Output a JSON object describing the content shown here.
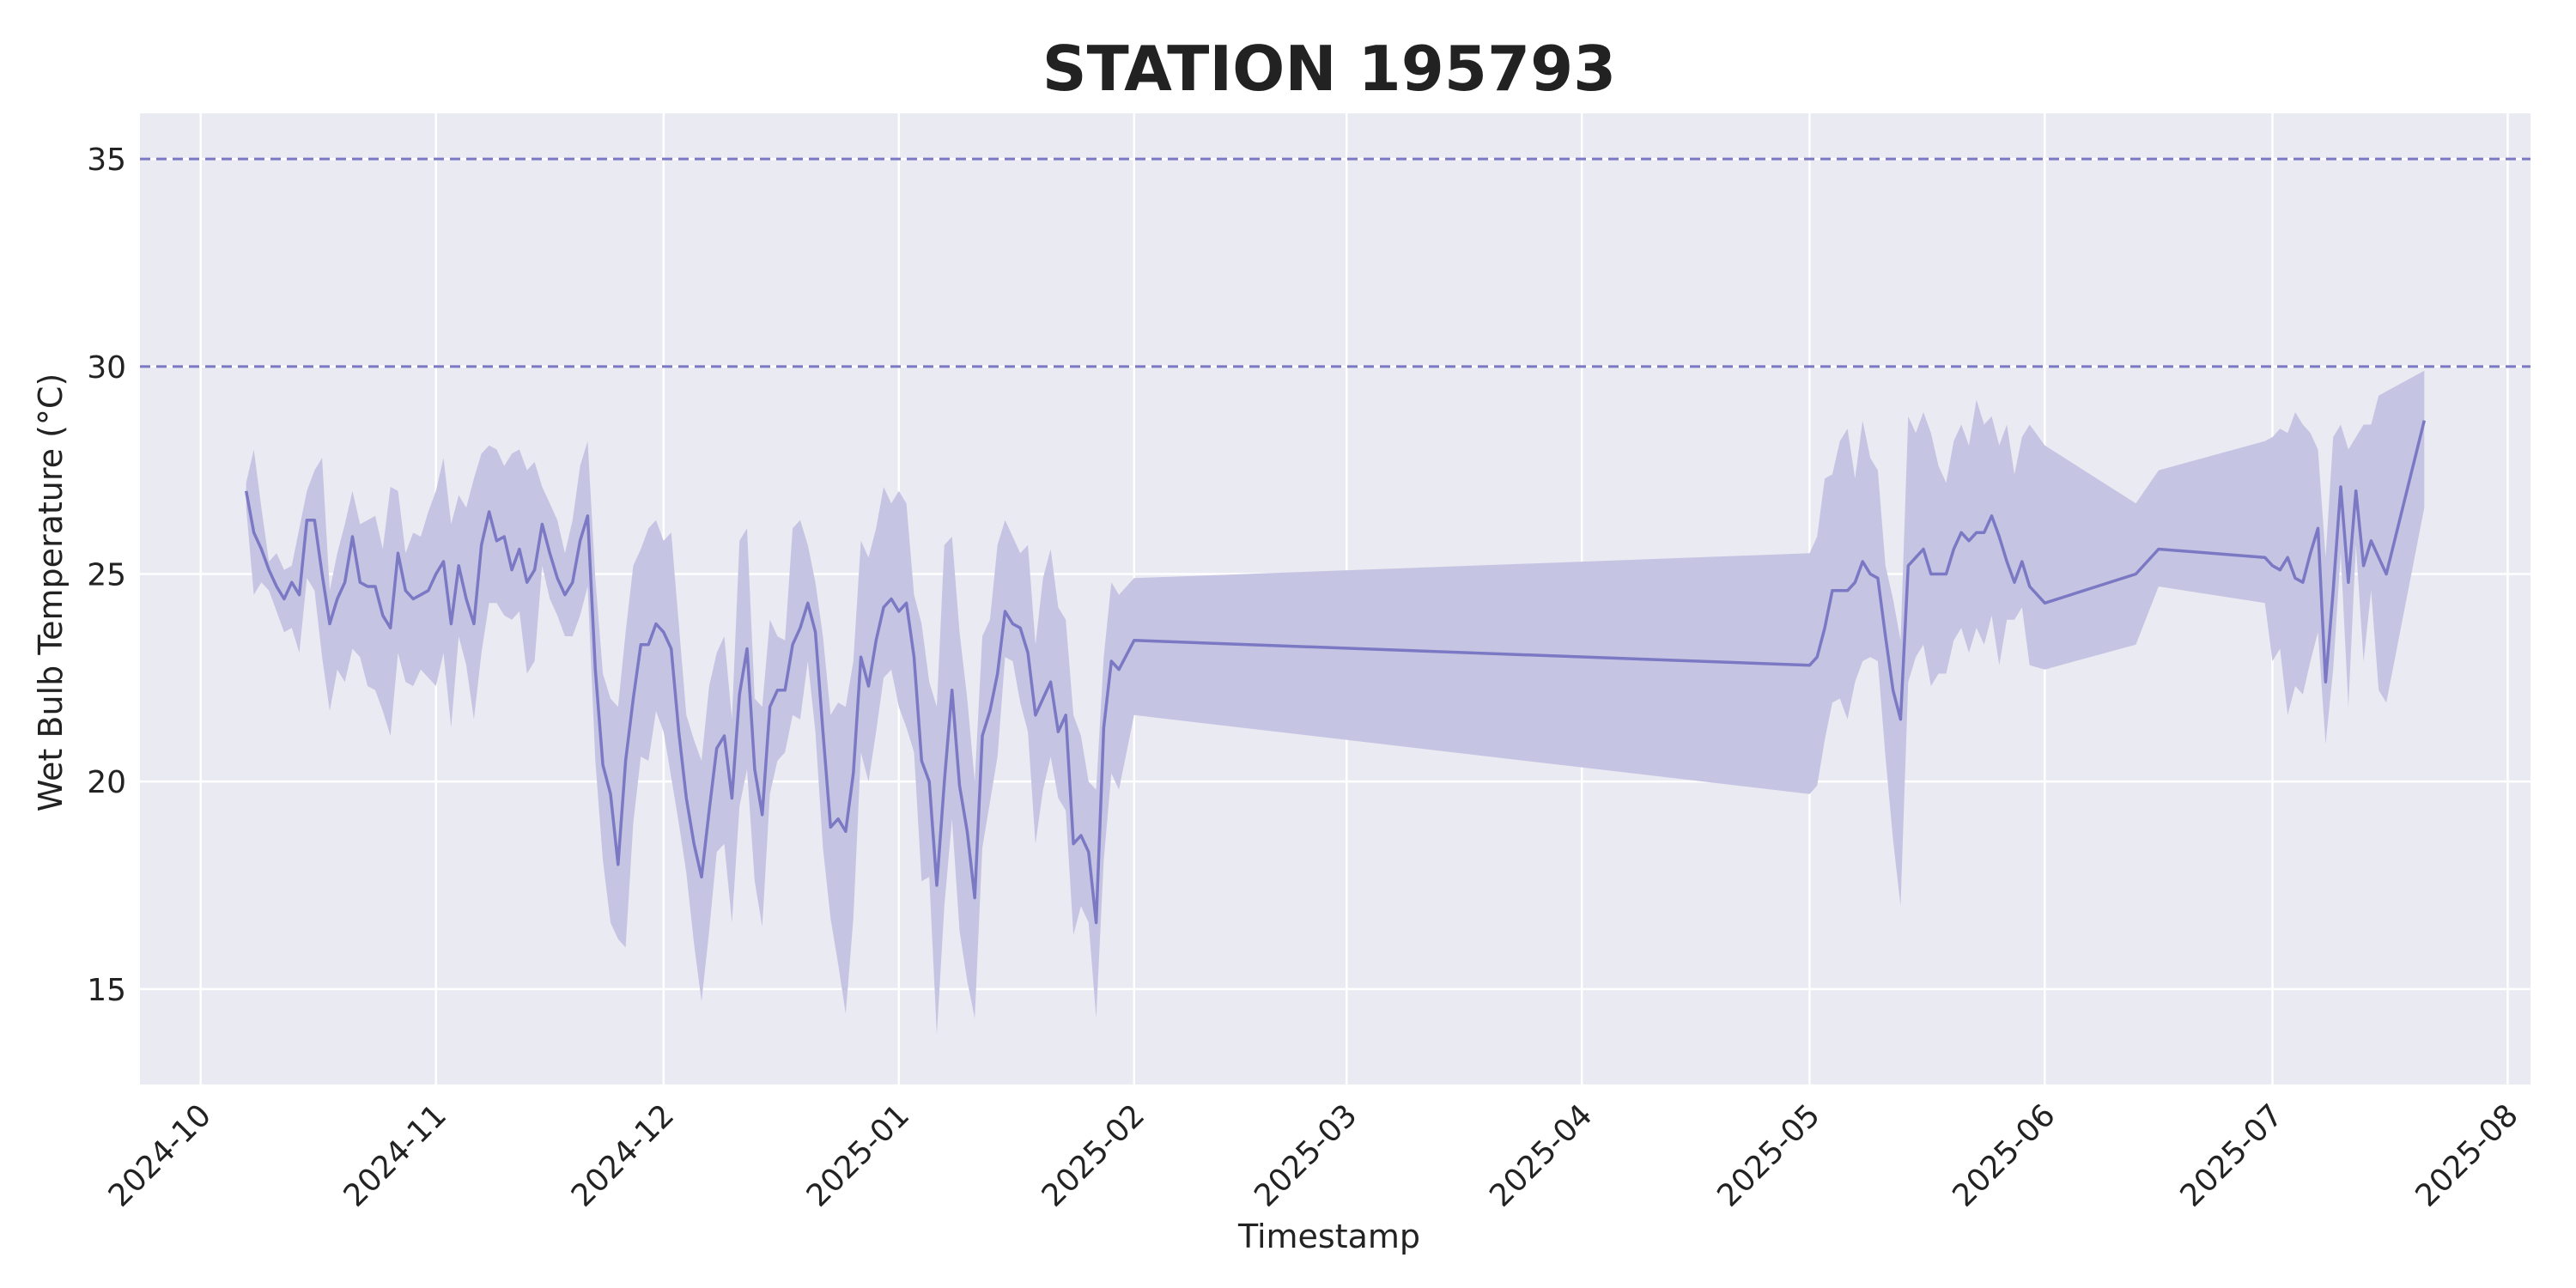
{
  "chart_data": {
    "type": "line",
    "title": "STATION 195793",
    "xlabel": "Timestamp",
    "ylabel": "Wet Bulb Temperature (°C)",
    "x_tick_labels": [
      "2024-10",
      "2024-11",
      "2024-12",
      "2025-01",
      "2025-02",
      "2025-03",
      "2025-04",
      "2025-05",
      "2025-06",
      "2025-07",
      "2025-08"
    ],
    "x_ticks": [
      "2024-10-01",
      "2024-11-01",
      "2024-12-01",
      "2025-01-01",
      "2025-02-01",
      "2025-03-01",
      "2025-04-01",
      "2025-05-01",
      "2025-06-01",
      "2025-07-01",
      "2025-08-01"
    ],
    "xlim": [
      "2024-09-23",
      "2025-08-04"
    ],
    "y_ticks": [
      15,
      20,
      25,
      30,
      35
    ],
    "ylim": [
      12.7,
      36.1
    ],
    "grid": true,
    "reference_lines": [
      30,
      35
    ],
    "colors": {
      "line": "#7b78c4",
      "band": "#c6c4e3",
      "background": "#eaeaf2",
      "grid": "#ffffff",
      "reference": "#7b78c4"
    },
    "series": [
      {
        "points": [
          [
            "2024-10-07",
            27.0,
            27.2,
            26.6
          ],
          [
            "2024-10-08",
            26.0,
            28.0,
            24.5
          ],
          [
            "2024-10-09",
            25.6,
            26.6,
            24.8
          ],
          [
            "2024-10-10",
            25.1,
            25.3,
            24.6
          ],
          [
            "2024-10-11",
            24.7,
            25.5,
            24.1
          ],
          [
            "2024-10-12",
            24.4,
            25.1,
            23.6
          ],
          [
            "2024-10-13",
            24.8,
            25.2,
            23.7
          ],
          [
            "2024-10-14",
            24.5,
            26.1,
            23.1
          ],
          [
            "2024-10-15",
            26.3,
            27.0,
            24.9
          ],
          [
            "2024-10-16",
            26.3,
            27.5,
            24.6
          ],
          [
            "2024-10-17",
            25.0,
            27.8,
            23.0
          ],
          [
            "2024-10-18",
            23.8,
            24.6,
            21.7
          ],
          [
            "2024-10-19",
            24.4,
            25.5,
            22.7
          ],
          [
            "2024-10-20",
            24.8,
            26.2,
            22.4
          ],
          [
            "2024-10-21",
            25.9,
            27.0,
            23.2
          ],
          [
            "2024-10-22",
            24.8,
            26.2,
            23.0
          ],
          [
            "2024-10-23",
            24.7,
            26.3,
            22.3
          ],
          [
            "2024-10-24",
            24.7,
            26.4,
            22.2
          ],
          [
            "2024-10-25",
            24.0,
            25.6,
            21.7
          ],
          [
            "2024-10-26",
            23.7,
            27.1,
            21.1
          ],
          [
            "2024-10-27",
            25.5,
            27.0,
            23.1
          ],
          [
            "2024-10-28",
            24.6,
            25.5,
            22.4
          ],
          [
            "2024-10-29",
            24.4,
            26.0,
            22.3
          ],
          [
            "2024-10-30",
            24.5,
            25.9,
            22.7
          ],
          [
            "2024-10-31",
            24.6,
            26.5,
            22.5
          ],
          [
            "2024-11-01",
            25.0,
            27.0,
            22.3
          ],
          [
            "2024-11-02",
            25.3,
            27.8,
            23.1
          ],
          [
            "2024-11-03",
            23.8,
            26.2,
            21.3
          ],
          [
            "2024-11-04",
            25.2,
            26.9,
            23.5
          ],
          [
            "2024-11-05",
            24.4,
            26.6,
            22.8
          ],
          [
            "2024-11-06",
            23.8,
            27.3,
            21.5
          ],
          [
            "2024-11-07",
            25.7,
            27.9,
            23.1
          ],
          [
            "2024-11-08",
            26.5,
            28.1,
            24.3
          ],
          [
            "2024-11-09",
            25.8,
            28.0,
            24.3
          ],
          [
            "2024-11-10",
            25.9,
            27.6,
            24.0
          ],
          [
            "2024-11-11",
            25.1,
            27.9,
            23.9
          ],
          [
            "2024-11-12",
            25.6,
            28.0,
            24.1
          ],
          [
            "2024-11-13",
            24.8,
            27.5,
            22.6
          ],
          [
            "2024-11-14",
            25.1,
            27.7,
            22.9
          ],
          [
            "2024-11-15",
            26.2,
            27.1,
            25.2
          ],
          [
            "2024-11-16",
            25.5,
            26.7,
            24.4
          ],
          [
            "2024-11-17",
            24.9,
            26.3,
            24.0
          ],
          [
            "2024-11-18",
            24.5,
            25.5,
            23.5
          ],
          [
            "2024-11-19",
            24.8,
            26.3,
            23.5
          ],
          [
            "2024-11-20",
            25.8,
            27.6,
            24.0
          ],
          [
            "2024-11-21",
            26.4,
            28.2,
            24.7
          ],
          [
            "2024-11-22",
            22.7,
            24.9,
            20.5
          ],
          [
            "2024-11-23",
            20.4,
            22.6,
            18.1
          ],
          [
            "2024-11-24",
            19.7,
            22.0,
            16.6
          ],
          [
            "2024-11-25",
            18.0,
            21.8,
            16.2
          ],
          [
            "2024-11-26",
            20.5,
            23.6,
            16.0
          ],
          [
            "2024-11-27",
            22.0,
            25.2,
            19.0
          ],
          [
            "2024-11-28",
            23.3,
            25.6,
            20.6
          ],
          [
            "2024-11-29",
            23.3,
            26.1,
            20.5
          ],
          [
            "2024-11-30",
            23.8,
            26.3,
            21.7
          ],
          [
            "2024-12-01",
            23.6,
            25.8,
            21.2
          ],
          [
            "2024-12-02",
            23.2,
            26.0,
            20.1
          ],
          [
            "2024-12-03",
            21.2,
            23.8,
            19.0
          ],
          [
            "2024-12-04",
            19.6,
            21.6,
            17.8
          ],
          [
            "2024-12-05",
            18.5,
            21.0,
            16.1
          ],
          [
            "2024-12-06",
            17.7,
            20.5,
            14.7
          ],
          [
            "2024-12-07",
            19.3,
            22.3,
            16.4
          ],
          [
            "2024-12-08",
            20.8,
            23.1,
            18.3
          ],
          [
            "2024-12-09",
            21.1,
            23.5,
            18.5
          ],
          [
            "2024-12-10",
            19.6,
            21.5,
            16.6
          ],
          [
            "2024-12-11",
            22.1,
            25.8,
            19.4
          ],
          [
            "2024-12-12",
            23.2,
            26.1,
            20.3
          ],
          [
            "2024-12-13",
            20.3,
            22.0,
            17.6
          ],
          [
            "2024-12-14",
            19.2,
            21.8,
            16.5
          ],
          [
            "2024-12-15",
            21.8,
            23.9,
            19.7
          ],
          [
            "2024-12-16",
            22.2,
            23.5,
            20.5
          ],
          [
            "2024-12-17",
            22.2,
            23.4,
            20.7
          ],
          [
            "2024-12-18",
            23.3,
            26.1,
            21.6
          ],
          [
            "2024-12-19",
            23.7,
            26.3,
            21.5
          ],
          [
            "2024-12-20",
            24.3,
            25.7,
            22.9
          ],
          [
            "2024-12-21",
            23.6,
            24.8,
            21.2
          ],
          [
            "2024-12-22",
            21.2,
            23.5,
            18.4
          ],
          [
            "2024-12-23",
            18.9,
            21.6,
            16.7
          ],
          [
            "2024-12-24",
            19.1,
            21.9,
            15.6
          ],
          [
            "2024-12-25",
            18.8,
            21.8,
            14.4
          ],
          [
            "2024-12-26",
            20.2,
            22.9,
            16.7
          ],
          [
            "2024-12-27",
            23.0,
            25.8,
            20.7
          ],
          [
            "2024-12-28",
            22.3,
            25.4,
            20.0
          ],
          [
            "2024-12-29",
            23.4,
            26.1,
            21.2
          ],
          [
            "2024-12-30",
            24.2,
            27.1,
            22.5
          ],
          [
            "2024-12-31",
            24.4,
            26.7,
            22.7
          ],
          [
            "2025-01-01",
            24.1,
            27.0,
            21.8
          ],
          [
            "2025-01-02",
            24.3,
            26.7,
            21.3
          ],
          [
            "2025-01-03",
            23.0,
            24.5,
            20.7
          ],
          [
            "2025-01-04",
            20.5,
            23.8,
            17.6
          ],
          [
            "2025-01-05",
            20.0,
            22.4,
            17.7
          ],
          [
            "2025-01-06",
            17.5,
            21.8,
            13.9
          ],
          [
            "2025-01-07",
            20.0,
            25.7,
            17.0
          ],
          [
            "2025-01-08",
            22.2,
            25.9,
            19.1
          ],
          [
            "2025-01-09",
            19.9,
            23.6,
            16.4
          ],
          [
            "2025-01-10",
            18.8,
            22.0,
            15.2
          ],
          [
            "2025-01-11",
            17.2,
            20.0,
            14.3
          ],
          [
            "2025-01-12",
            21.1,
            23.5,
            18.4
          ],
          [
            "2025-01-13",
            21.7,
            23.9,
            19.5
          ],
          [
            "2025-01-14",
            22.6,
            25.7,
            20.6
          ],
          [
            "2025-01-15",
            24.1,
            26.3,
            23.0
          ],
          [
            "2025-01-16",
            23.8,
            25.9,
            22.9
          ],
          [
            "2025-01-17",
            23.7,
            25.5,
            21.9
          ],
          [
            "2025-01-18",
            23.1,
            25.7,
            21.2
          ],
          [
            "2025-01-19",
            21.6,
            23.3,
            18.5
          ],
          [
            "2025-01-20",
            22.0,
            24.9,
            19.8
          ],
          [
            "2025-01-21",
            22.4,
            25.6,
            20.6
          ],
          [
            "2025-01-22",
            21.2,
            24.2,
            19.6
          ],
          [
            "2025-01-23",
            21.6,
            23.9,
            19.3
          ],
          [
            "2025-01-24",
            18.5,
            21.6,
            16.3
          ],
          [
            "2025-01-25",
            18.7,
            21.1,
            17.0
          ],
          [
            "2025-01-26",
            18.3,
            20.0,
            16.6
          ],
          [
            "2025-01-27",
            16.6,
            19.8,
            14.3
          ],
          [
            "2025-01-28",
            21.3,
            23.0,
            18.1
          ],
          [
            "2025-01-29",
            22.9,
            24.8,
            20.2
          ],
          [
            "2025-01-30",
            22.7,
            24.5,
            19.8
          ],
          [
            "2025-02-01",
            23.4,
            24.9,
            21.6
          ],
          [
            "2025-05-01",
            22.8,
            25.5,
            19.7
          ],
          [
            "2025-05-02",
            23.0,
            25.9,
            19.9
          ],
          [
            "2025-05-03",
            23.7,
            27.3,
            21.0
          ],
          [
            "2025-05-04",
            24.6,
            27.4,
            21.9
          ],
          [
            "2025-05-05",
            24.6,
            28.2,
            22.0
          ],
          [
            "2025-05-06",
            24.6,
            28.5,
            21.5
          ],
          [
            "2025-05-07",
            24.8,
            27.3,
            22.4
          ],
          [
            "2025-05-08",
            25.3,
            28.7,
            22.9
          ],
          [
            "2025-05-09",
            25.0,
            27.8,
            23.0
          ],
          [
            "2025-05-10",
            24.9,
            27.5,
            22.9
          ],
          [
            "2025-05-11",
            23.5,
            25.2,
            20.6
          ],
          [
            "2025-05-12",
            22.2,
            24.4,
            18.6
          ],
          [
            "2025-05-13",
            21.5,
            23.4,
            17.0
          ],
          [
            "2025-05-14",
            25.2,
            28.8,
            22.4
          ],
          [
            "2025-05-15",
            25.4,
            28.4,
            23.0
          ],
          [
            "2025-05-16",
            25.6,
            28.9,
            23.3
          ],
          [
            "2025-05-17",
            25.0,
            28.4,
            22.3
          ],
          [
            "2025-05-18",
            25.0,
            27.6,
            22.6
          ],
          [
            "2025-05-19",
            25.0,
            27.2,
            22.6
          ],
          [
            "2025-05-20",
            25.6,
            28.2,
            23.4
          ],
          [
            "2025-05-21",
            26.0,
            28.6,
            23.7
          ],
          [
            "2025-05-22",
            25.8,
            28.1,
            23.1
          ],
          [
            "2025-05-23",
            26.0,
            29.2,
            23.7
          ],
          [
            "2025-05-24",
            26.0,
            28.6,
            23.3
          ],
          [
            "2025-05-25",
            26.4,
            28.8,
            24.0
          ],
          [
            "2025-05-26",
            25.9,
            28.1,
            22.8
          ],
          [
            "2025-05-27",
            25.3,
            28.6,
            23.9
          ],
          [
            "2025-05-28",
            24.8,
            27.4,
            23.9
          ],
          [
            "2025-05-29",
            25.3,
            28.3,
            24.2
          ],
          [
            "2025-05-30",
            24.7,
            28.6,
            22.8
          ],
          [
            "2025-06-01",
            24.3,
            28.1,
            22.7
          ],
          [
            "2025-06-13",
            25.0,
            26.7,
            23.3
          ],
          [
            "2025-06-16",
            25.6,
            27.5,
            24.7
          ],
          [
            "2025-06-30",
            25.4,
            28.2,
            24.3
          ],
          [
            "2025-07-01",
            25.2,
            28.3,
            22.9
          ],
          [
            "2025-07-02",
            25.1,
            28.5,
            23.2
          ],
          [
            "2025-07-03",
            25.4,
            28.4,
            21.6
          ],
          [
            "2025-07-04",
            24.9,
            28.9,
            22.3
          ],
          [
            "2025-07-05",
            24.8,
            28.6,
            22.1
          ],
          [
            "2025-07-06",
            25.5,
            28.4,
            22.9
          ],
          [
            "2025-07-07",
            26.1,
            28.0,
            23.6
          ],
          [
            "2025-07-08",
            22.4,
            25.4,
            20.9
          ],
          [
            "2025-07-09",
            24.6,
            28.3,
            22.7
          ],
          [
            "2025-07-10",
            27.1,
            28.6,
            25.5
          ],
          [
            "2025-07-11",
            24.8,
            28.0,
            21.8
          ],
          [
            "2025-07-12",
            27.0,
            28.3,
            25.7
          ],
          [
            "2025-07-13",
            25.2,
            28.6,
            22.9
          ],
          [
            "2025-07-14",
            25.8,
            28.6,
            24.6
          ],
          [
            "2025-07-15",
            25.4,
            29.3,
            22.2
          ],
          [
            "2025-07-16",
            25.0,
            29.4,
            21.9
          ],
          [
            "2025-07-21",
            28.7,
            29.9,
            26.6
          ]
        ]
      }
    ]
  }
}
